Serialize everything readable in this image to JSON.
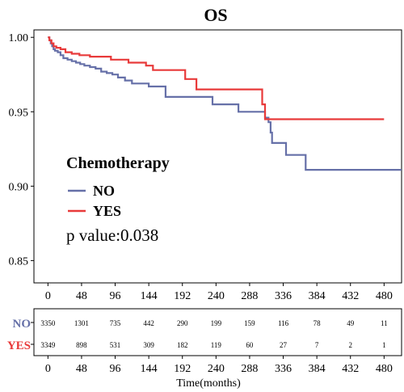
{
  "chart_data": {
    "type": "line",
    "title": "OS",
    "xlabel": "Time(months)",
    "ylabel": "",
    "xlim": [
      -20,
      505
    ],
    "ylim": [
      0.835,
      1.005
    ],
    "x_ticks": [
      "0",
      "48",
      "96",
      "144",
      "192",
      "240",
      "288",
      "336",
      "384",
      "432",
      "480"
    ],
    "y_ticks": [
      "0.85",
      "0.90",
      "0.95",
      "1.00"
    ],
    "legend_position": "middle-left",
    "legend": {
      "title": "Chemotherapy",
      "entries": [
        "NO",
        "YES"
      ]
    },
    "annotation": "p value:0.038",
    "series": [
      {
        "name": "NO",
        "color": "#6670A8",
        "points": [
          [
            0,
            1.0
          ],
          [
            2,
            0.998
          ],
          [
            4,
            0.996
          ],
          [
            6,
            0.994
          ],
          [
            8,
            0.992
          ],
          [
            10,
            0.991
          ],
          [
            14,
            0.99
          ],
          [
            18,
            0.988
          ],
          [
            22,
            0.986
          ],
          [
            28,
            0.985
          ],
          [
            34,
            0.984
          ],
          [
            40,
            0.983
          ],
          [
            46,
            0.982
          ],
          [
            52,
            0.981
          ],
          [
            60,
            0.98
          ],
          [
            68,
            0.979
          ],
          [
            76,
            0.977
          ],
          [
            84,
            0.976
          ],
          [
            92,
            0.975
          ],
          [
            100,
            0.973
          ],
          [
            110,
            0.971
          ],
          [
            120,
            0.969
          ],
          [
            132,
            0.969
          ],
          [
            144,
            0.967
          ],
          [
            156,
            0.967
          ],
          [
            168,
            0.96
          ],
          [
            200,
            0.96
          ],
          [
            228,
            0.96
          ],
          [
            235,
            0.955
          ],
          [
            262,
            0.955
          ],
          [
            272,
            0.95
          ],
          [
            300,
            0.95
          ],
          [
            310,
            0.946
          ],
          [
            315,
            0.943
          ],
          [
            318,
            0.936
          ],
          [
            320,
            0.929
          ],
          [
            335,
            0.929
          ],
          [
            340,
            0.921
          ],
          [
            360,
            0.921
          ],
          [
            368,
            0.911
          ],
          [
            505,
            0.911
          ]
        ]
      },
      {
        "name": "YES",
        "color": "#E83A3A",
        "points": [
          [
            0,
            1.0
          ],
          [
            2,
            0.998
          ],
          [
            5,
            0.996
          ],
          [
            8,
            0.994
          ],
          [
            12,
            0.993
          ],
          [
            18,
            0.992
          ],
          [
            25,
            0.99
          ],
          [
            34,
            0.989
          ],
          [
            45,
            0.988
          ],
          [
            60,
            0.987
          ],
          [
            75,
            0.987
          ],
          [
            90,
            0.985
          ],
          [
            115,
            0.983
          ],
          [
            136,
            0.983
          ],
          [
            140,
            0.981
          ],
          [
            150,
            0.978
          ],
          [
            190,
            0.978
          ],
          [
            196,
            0.972
          ],
          [
            206,
            0.972
          ],
          [
            212,
            0.965
          ],
          [
            302,
            0.965
          ],
          [
            306,
            0.955
          ],
          [
            310,
            0.945
          ],
          [
            480,
            0.945
          ]
        ]
      }
    ],
    "risk_table": {
      "time_points": [
        0,
        48,
        96,
        144,
        192,
        240,
        288,
        336,
        384,
        432,
        480
      ],
      "rows": [
        {
          "label": "NO",
          "color": "#6670A8",
          "values": [
            "3350",
            "1301",
            "735",
            "442",
            "290",
            "199",
            "159",
            "116",
            "78",
            "49",
            "11"
          ]
        },
        {
          "label": "YES",
          "color": "#E83A3A",
          "values": [
            "3349",
            "898",
            "531",
            "309",
            "182",
            "119",
            "60",
            "27",
            "7",
            "2",
            "1"
          ]
        }
      ]
    }
  }
}
